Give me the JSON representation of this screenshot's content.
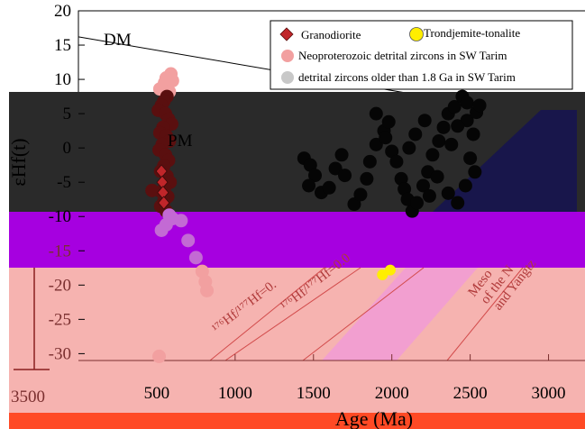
{
  "chart_data": {
    "type": "scatter",
    "title": "",
    "xlabel": "Age (Ma)",
    "ylabel": "εHf(t)",
    "xlim": [
      0,
      3250
    ],
    "ylim": [
      -31,
      20
    ],
    "x_ticks": [
      500,
      1000,
      1500,
      2000,
      2500,
      3000
    ],
    "x_tick_labels": [
      "500",
      "1000",
      "1500",
      "2000",
      "2500",
      "3000"
    ],
    "extra_x_label": "3500",
    "y_ticks": [
      20,
      15,
      10,
      5,
      0,
      -5,
      -10,
      -15,
      -20,
      -25,
      -30
    ],
    "y_tick_labels": [
      "20",
      "15",
      "10",
      "5",
      "0",
      "-5",
      "-10",
      "-15",
      "-20",
      "-25",
      "-30"
    ],
    "legend_position": "top-right",
    "legend": [
      {
        "key": "granodiorite",
        "label": "Granodiorite",
        "marker": "diamond",
        "color": "#c0262a"
      },
      {
        "key": "trondhjemite",
        "label": "Trondjemite-tonalite",
        "marker": "circle",
        "color": "#ffee00"
      },
      {
        "key": "neo",
        "label": "Neoproterozoic detrital zircons in SW Tarim",
        "marker": "circle",
        "color": "#f2a0a0"
      },
      {
        "key": "old",
        "label": "detrital zircons older than 1.8 Ga in SW Tarim",
        "marker": "circle",
        "color": "#c8c8c8"
      }
    ],
    "annotations": {
      "dm": "DM",
      "pm": "PM",
      "hf1": "¹⁷⁶Hf/¹⁷⁷Hf=0.",
      "hf2": "¹⁷⁶Hf/¹⁷⁷Hf=0.0",
      "meso": "Meso",
      "of_the_n": "of the N",
      "and_yangtz": "and Yangtz"
    },
    "reference_lines": {
      "DM": [
        [
          0,
          16.2
        ],
        [
          3250,
          3.5
        ]
      ],
      "PM": [
        [
          0,
          0
        ],
        [
          3250,
          0
        ]
      ]
    },
    "series": [
      {
        "key": "neo",
        "points": [
          [
            590,
            10.8
          ],
          [
            560,
            10.2
          ],
          [
            550,
            9.5
          ],
          [
            540,
            8.9
          ],
          [
            520,
            8.6
          ],
          [
            600,
            9.8
          ],
          [
            580,
            8.2
          ],
          [
            565,
            7.5
          ],
          [
            545,
            6.8
          ],
          [
            530,
            6.2
          ],
          [
            510,
            5.5
          ],
          [
            555,
            5.0
          ],
          [
            575,
            4.2
          ],
          [
            595,
            3.5
          ],
          [
            540,
            3.0
          ],
          [
            520,
            2.2
          ],
          [
            560,
            1.8
          ],
          [
            580,
            1.0
          ],
          [
            535,
            0.5
          ],
          [
            515,
            -0.3
          ],
          [
            555,
            -1.0
          ],
          [
            575,
            -1.8
          ],
          [
            545,
            -2.6
          ],
          [
            525,
            -3.4
          ],
          [
            565,
            -4.1
          ],
          [
            585,
            -5.0
          ],
          [
            550,
            -5.8
          ],
          [
            530,
            -6.4
          ],
          [
            470,
            -6.2
          ],
          [
            570,
            -7.1
          ],
          [
            545,
            -7.8
          ],
          [
            525,
            -8.5
          ],
          [
            560,
            -9.2
          ],
          [
            580,
            -9.8
          ],
          [
            600,
            -10.3
          ],
          [
            655,
            -10.6
          ],
          [
            700,
            -13.5
          ],
          [
            750,
            -16.0
          ],
          [
            790,
            -18.0
          ],
          [
            810,
            -19.5
          ],
          [
            820,
            -20.8
          ],
          [
            530,
            -12.0
          ],
          [
            560,
            -11.2
          ],
          [
            515,
            -30.4
          ]
        ]
      },
      {
        "key": "old",
        "points": [
          [
            1440,
            -1.5
          ],
          [
            1480,
            -2.5
          ],
          [
            1510,
            -4.0
          ],
          [
            1470,
            -5.5
          ],
          [
            1550,
            -6.5
          ],
          [
            1600,
            -5.8
          ],
          [
            1640,
            -3.0
          ],
          [
            1680,
            -1.0
          ],
          [
            1700,
            -4.0
          ],
          [
            1760,
            -8.2
          ],
          [
            1800,
            -6.8
          ],
          [
            1840,
            -4.5
          ],
          [
            1860,
            -2.0
          ],
          [
            1900,
            0.5
          ],
          [
            1950,
            2.5
          ],
          [
            1960,
            1.5
          ],
          [
            2000,
            -0.5
          ],
          [
            1900,
            5.0
          ],
          [
            1980,
            3.8
          ],
          [
            2030,
            -2.0
          ],
          [
            2060,
            -4.5
          ],
          [
            2080,
            -6.0
          ],
          [
            2100,
            -7.5
          ],
          [
            2130,
            -9.2
          ],
          [
            2160,
            -8.0
          ],
          [
            2200,
            -5.5
          ],
          [
            2230,
            -3.5
          ],
          [
            2260,
            -1.0
          ],
          [
            2300,
            1.0
          ],
          [
            2330,
            3.0
          ],
          [
            2360,
            5.0
          ],
          [
            2400,
            6.0
          ],
          [
            2450,
            7.5
          ],
          [
            2480,
            4.0
          ],
          [
            2520,
            2.0
          ],
          [
            2540,
            5.2
          ],
          [
            2480,
            6.6
          ],
          [
            2420,
            3.2
          ],
          [
            2380,
            0.5
          ],
          [
            2500,
            -1.5
          ],
          [
            2530,
            -3.5
          ],
          [
            2470,
            -5.5
          ],
          [
            2420,
            -8.0
          ],
          [
            2360,
            -6.6
          ],
          [
            2290,
            -4.2
          ],
          [
            2150,
            2.0
          ],
          [
            2110,
            0.0
          ],
          [
            2210,
            4.0
          ],
          [
            2240,
            -7.0
          ],
          [
            2560,
            6.2
          ]
        ]
      },
      {
        "key": "granodiorite",
        "points": [
          [
            530,
            -3.4
          ],
          [
            535,
            -5.0
          ],
          [
            540,
            -6.5
          ],
          [
            545,
            -8.0
          ]
        ]
      },
      {
        "key": "trondhjemite",
        "points": [
          [
            1940,
            -18.5
          ],
          [
            1990,
            -17.8
          ]
        ]
      }
    ]
  }
}
